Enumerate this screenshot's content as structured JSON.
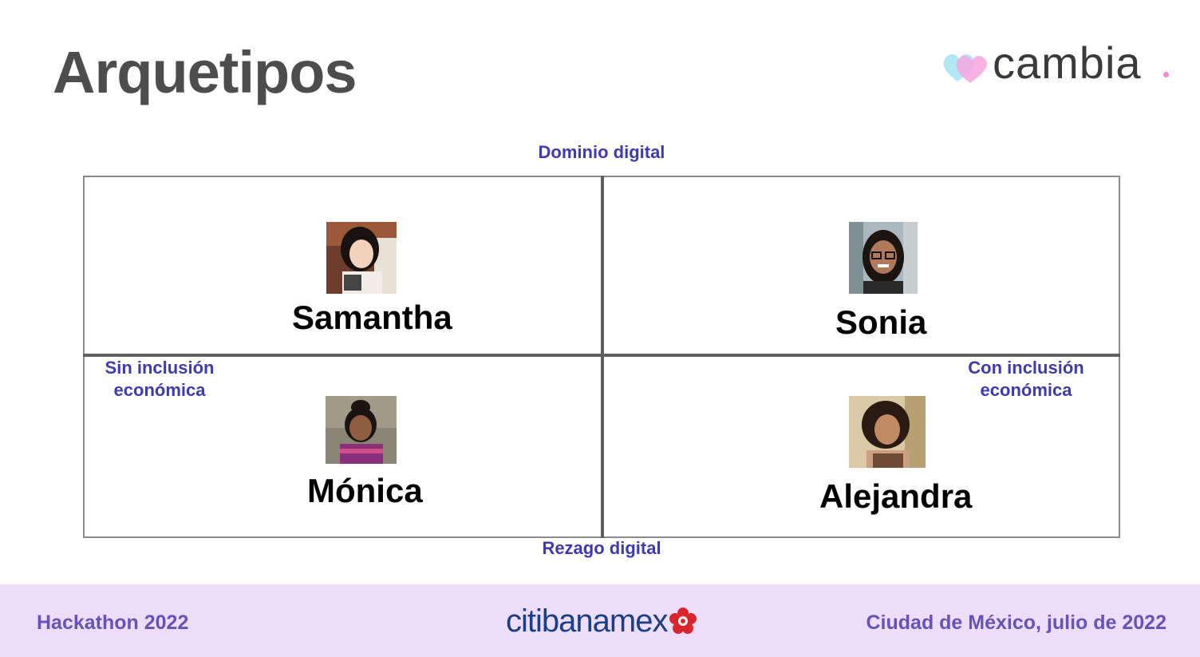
{
  "header": {
    "title": "Arquetipos"
  },
  "logo": {
    "wordmark": "cambia",
    "icon": "hearts-icon"
  },
  "axes": {
    "top": "Dominio digital",
    "bottom": "Rezago digital",
    "left": "Sin inclusión\neconómica",
    "right": "Con inclusión\neconómica"
  },
  "personas": [
    {
      "name": "Samantha",
      "quadrant": "top-left"
    },
    {
      "name": "Sonia",
      "quadrant": "top-right"
    },
    {
      "name": "Mónica",
      "quadrant": "bottom-left"
    },
    {
      "name": "Alejandra",
      "quadrant": "bottom-right"
    }
  ],
  "footer": {
    "left": "Hackathon 2022",
    "brand_a": "citi",
    "brand_b": "banamex",
    "right": "Ciudad de México, julio de 2022"
  },
  "colors": {
    "accent": "#3f3ab0",
    "footer_bg": "#eedcfb",
    "footer_text": "#6553b8",
    "brand": "#1a3f86"
  }
}
